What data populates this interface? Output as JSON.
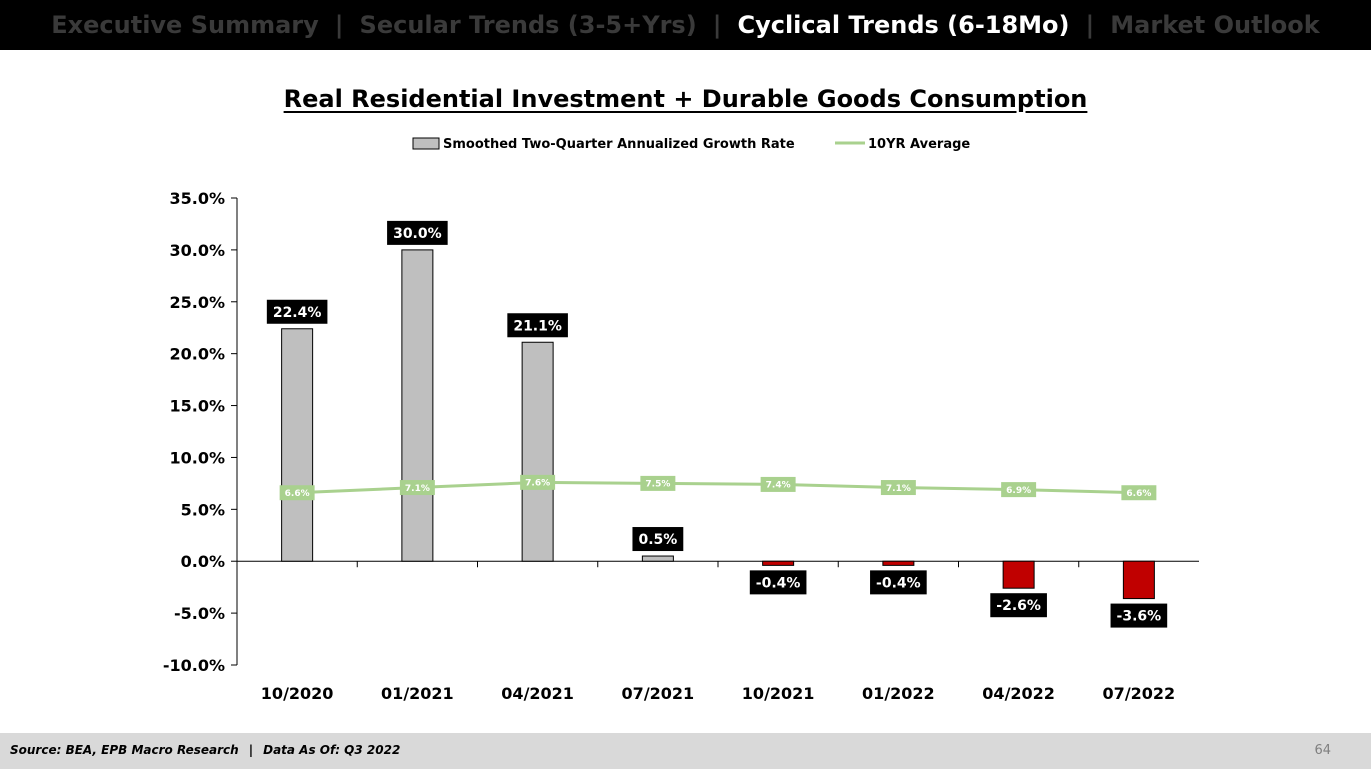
{
  "nav": {
    "tabs": [
      {
        "label": "Executive Summary",
        "active": false
      },
      {
        "label": "Secular Trends (3-5+Yrs)",
        "active": false
      },
      {
        "label": "Cyclical Trends (6-18Mo)",
        "active": true
      },
      {
        "label": "Market Outlook",
        "active": false
      }
    ],
    "separator": "|"
  },
  "footer": {
    "source": "Source: BEA, EPB Macro Research",
    "separator": "|",
    "data_as_of": "Data As Of: Q3 2022",
    "page_number": "64"
  },
  "colors": {
    "bar_positive": "#bfbfbf",
    "bar_negative": "#c00000",
    "line": "#a9d18e",
    "label_bg": "#000000",
    "label_text": "#ffffff"
  },
  "chart_data": {
    "type": "bar",
    "title": "Real Residential Investment + Durable Goods Consumption",
    "categories": [
      "10/2020",
      "01/2021",
      "04/2021",
      "07/2021",
      "10/2021",
      "01/2022",
      "04/2022",
      "07/2022"
    ],
    "series": [
      {
        "name": "Smoothed Two-Quarter Annualized Growth Rate",
        "type": "bar",
        "values": [
          22.4,
          30.0,
          21.1,
          0.5,
          -0.4,
          -0.4,
          -2.6,
          -3.6
        ],
        "labels": [
          "22.4%",
          "30.0%",
          "21.1%",
          "0.5%",
          "-0.4%",
          "-0.4%",
          "-2.6%",
          "-3.6%"
        ]
      },
      {
        "name": "10YR Average",
        "type": "line",
        "values": [
          6.6,
          7.1,
          7.6,
          7.5,
          7.4,
          7.1,
          6.9,
          6.6
        ],
        "labels": [
          "6.6%",
          "7.1%",
          "7.6%",
          "7.5%",
          "7.4%",
          "7.1%",
          "6.9%",
          "6.6%"
        ]
      }
    ],
    "ylim": [
      -10,
      35
    ],
    "yticks": [
      -10,
      -5,
      0,
      5,
      10,
      15,
      20,
      25,
      30,
      35
    ],
    "ytick_labels": [
      "-10.0%",
      "-5.0%",
      "0.0%",
      "5.0%",
      "10.0%",
      "15.0%",
      "20.0%",
      "25.0%",
      "30.0%",
      "35.0%"
    ],
    "xlabel": "",
    "ylabel": "",
    "legend_position": "top-center",
    "grid": false
  }
}
